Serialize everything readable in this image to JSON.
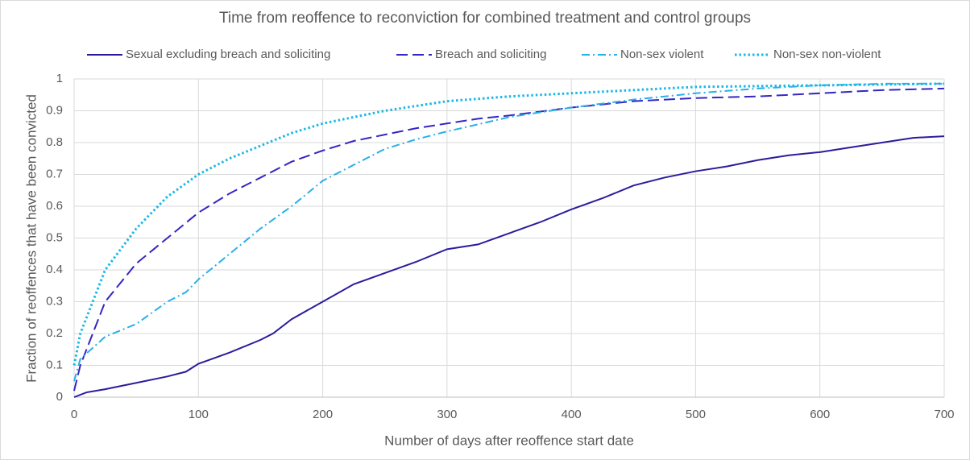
{
  "chart_data": {
    "type": "line",
    "title": "Time from reoffence to reconviction for combined treatment and control groups",
    "x_label": "Number of days after reoffence start date",
    "y_label": "Fraction of reoffences that have been convicted",
    "xlim": [
      0,
      700
    ],
    "xticks": [
      0,
      100,
      200,
      300,
      400,
      500,
      600,
      700
    ],
    "ylim": [
      0,
      1
    ],
    "yticks": [
      0,
      0.1,
      0.2,
      0.3,
      0.4,
      0.5,
      0.6,
      0.7,
      0.8,
      0.9,
      1
    ],
    "grid": true,
    "legend": "top",
    "series": [
      {
        "name": "Sexual excluding breach and soliciting",
        "color": "#2b1c9c",
        "dash": "solid",
        "x": [
          0,
          10,
          25,
          50,
          75,
          90,
          100,
          125,
          150,
          160,
          175,
          200,
          225,
          250,
          275,
          300,
          325,
          350,
          375,
          400,
          425,
          450,
          475,
          500,
          525,
          550,
          575,
          600,
          625,
          650,
          675,
          700
        ],
        "values": [
          0,
          0.015,
          0.025,
          0.045,
          0.065,
          0.08,
          0.105,
          0.14,
          0.18,
          0.2,
          0.245,
          0.3,
          0.355,
          0.39,
          0.425,
          0.465,
          0.48,
          0.515,
          0.55,
          0.59,
          0.625,
          0.665,
          0.69,
          0.71,
          0.725,
          0.745,
          0.76,
          0.77,
          0.785,
          0.8,
          0.815,
          0.82
        ]
      },
      {
        "name": "Breach and soliciting",
        "color": "#3527c2",
        "dash": "dashed",
        "x": [
          0,
          5,
          25,
          50,
          75,
          100,
          125,
          150,
          175,
          200,
          225,
          250,
          275,
          300,
          325,
          350,
          400,
          450,
          500,
          550,
          600,
          650,
          700
        ],
        "values": [
          0.02,
          0.1,
          0.3,
          0.42,
          0.5,
          0.58,
          0.64,
          0.69,
          0.74,
          0.775,
          0.805,
          0.825,
          0.845,
          0.86,
          0.875,
          0.885,
          0.91,
          0.93,
          0.94,
          0.945,
          0.955,
          0.965,
          0.97
        ]
      },
      {
        "name": "Non-sex violent",
        "color": "#2ab0e8",
        "dash": "dashdot",
        "x": [
          0,
          5,
          25,
          50,
          75,
          90,
          100,
          125,
          150,
          175,
          200,
          225,
          250,
          275,
          300,
          350,
          400,
          450,
          500,
          550,
          600,
          650,
          700
        ],
        "values": [
          0.05,
          0.12,
          0.19,
          0.23,
          0.3,
          0.33,
          0.37,
          0.45,
          0.53,
          0.6,
          0.68,
          0.73,
          0.78,
          0.81,
          0.835,
          0.88,
          0.91,
          0.935,
          0.955,
          0.97,
          0.98,
          0.985,
          0.985
        ]
      },
      {
        "name": "Non-sex non-violent",
        "color": "#1ab8e6",
        "dash": "dotted",
        "x": [
          0,
          5,
          25,
          50,
          75,
          100,
          125,
          150,
          175,
          200,
          250,
          300,
          350,
          400,
          450,
          500,
          600,
          700
        ],
        "values": [
          0.1,
          0.2,
          0.4,
          0.53,
          0.63,
          0.7,
          0.75,
          0.79,
          0.83,
          0.86,
          0.9,
          0.93,
          0.945,
          0.955,
          0.965,
          0.975,
          0.98,
          0.985
        ]
      }
    ]
  }
}
